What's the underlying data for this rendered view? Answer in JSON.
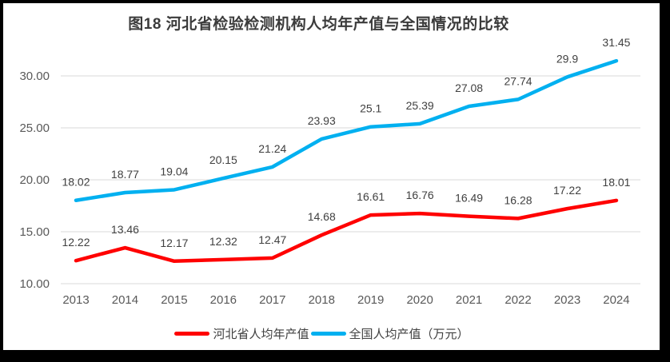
{
  "chart_data": {
    "type": "line",
    "title": "图18 河北省检验检测机构人均年产值与全国情况的比较",
    "categories": [
      "2013",
      "2014",
      "2015",
      "2016",
      "2017",
      "2018",
      "2019",
      "2020",
      "2021",
      "2022",
      "2023",
      "2024"
    ],
    "series": [
      {
        "name": "河北省人均年产值",
        "color": "#ff0000",
        "values": [
          12.22,
          13.46,
          12.17,
          12.32,
          12.47,
          14.68,
          16.61,
          16.76,
          16.49,
          16.28,
          17.22,
          18.01
        ],
        "labels": [
          "12.22",
          "13.46",
          "12.17",
          "12.32",
          "12.47",
          "14.68",
          "16.61",
          "16.76",
          "16.49",
          "16.28",
          "17.22",
          "18.01"
        ]
      },
      {
        "name": "全国人均产值（万元）",
        "color": "#00b0f0",
        "values": [
          18.02,
          18.77,
          19.04,
          20.15,
          21.24,
          23.93,
          25.1,
          25.39,
          27.08,
          27.74,
          29.9,
          31.45
        ],
        "labels": [
          "18.02",
          "18.77",
          "19.04",
          "20.15",
          "21.24",
          "23.93",
          "25.1",
          "25.39",
          "27.08",
          "27.74",
          "29.9",
          "31.45"
        ]
      }
    ],
    "y_ticks": [
      "10.00",
      "15.00",
      "20.00",
      "25.00",
      "30.00"
    ],
    "ylim": [
      10,
      32
    ],
    "grid": true,
    "legend_position": "bottom",
    "gridline_color": "#d9d9d9",
    "data_label_color": "#404040",
    "axis_text_color": "#595959",
    "frame_color": "#000000"
  }
}
